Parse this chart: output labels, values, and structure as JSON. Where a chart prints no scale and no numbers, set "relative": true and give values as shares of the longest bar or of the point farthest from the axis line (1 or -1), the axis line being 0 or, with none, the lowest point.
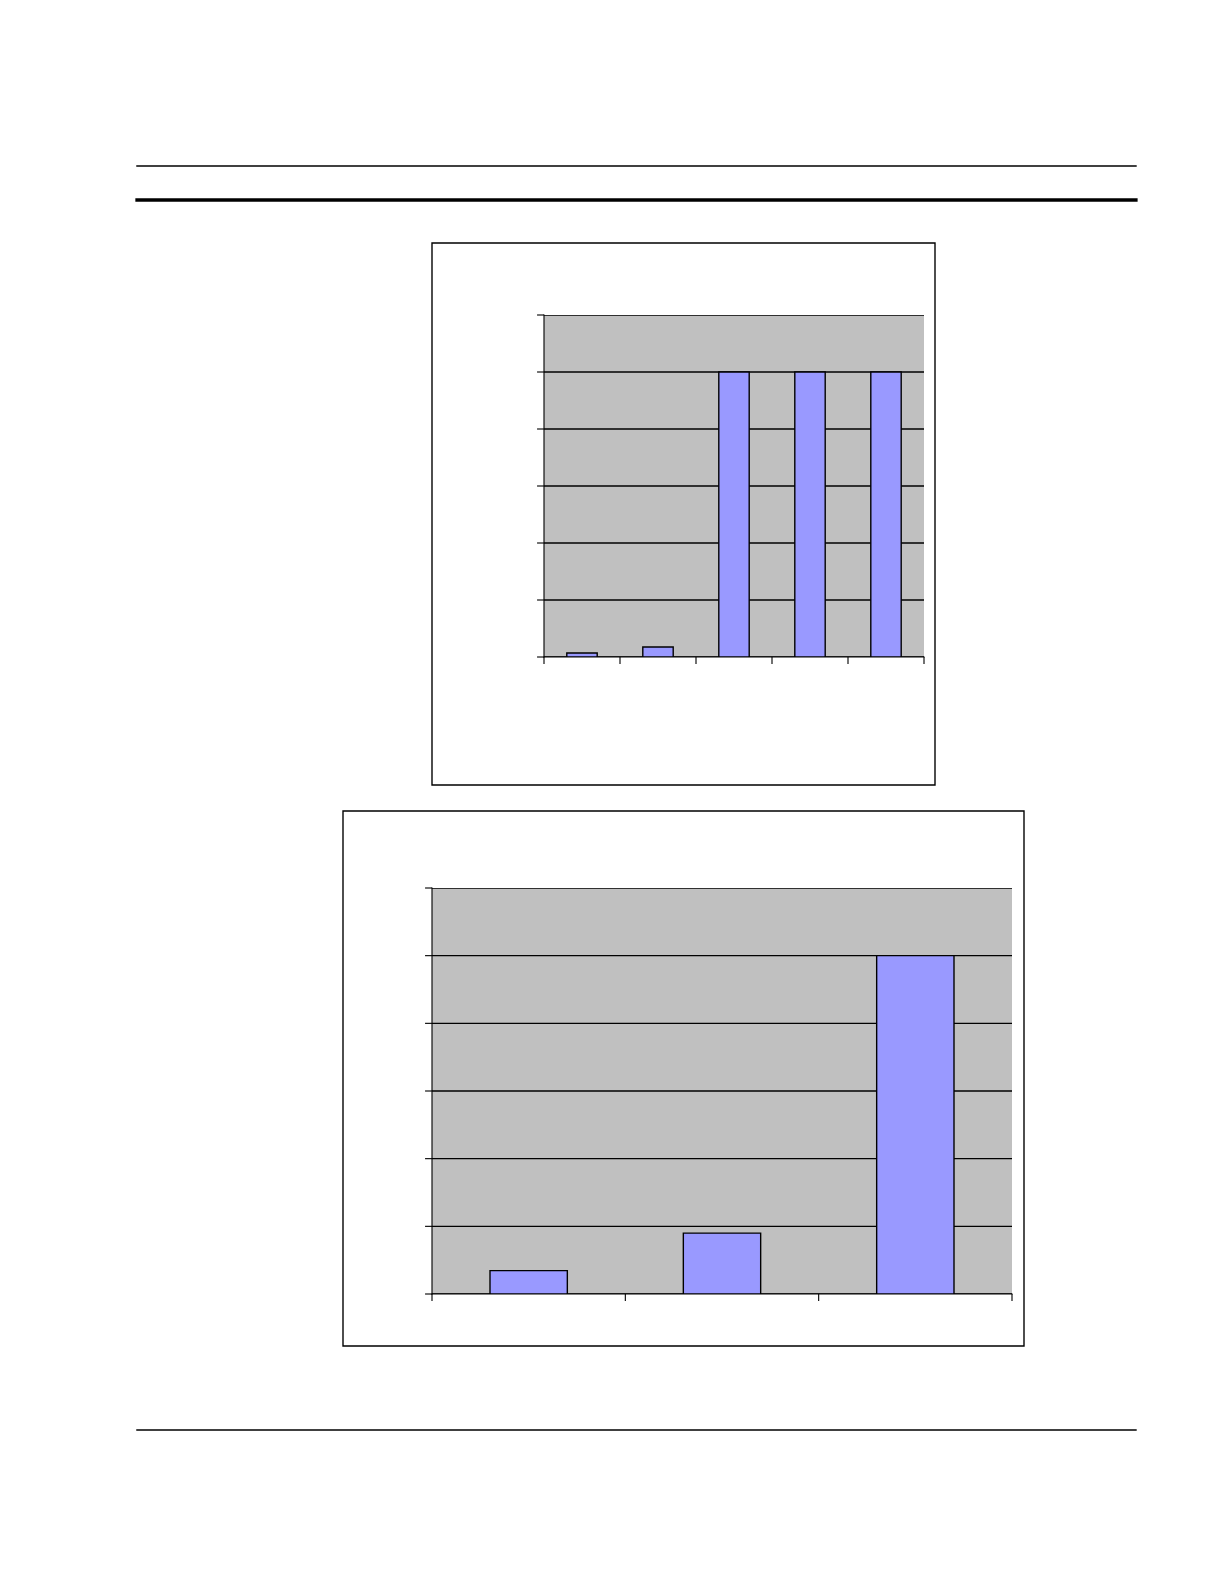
{
  "chart_data": [
    {
      "type": "bar",
      "categories": [
        null,
        null,
        null,
        null,
        null
      ],
      "values": [
        0.014,
        0.035,
        1,
        1,
        1
      ],
      "color": "#9999ff",
      "relative": true,
      "grid": "y",
      "tick_labels": false
    },
    {
      "type": "bar",
      "categories": [
        null,
        null,
        null
      ],
      "values": [
        0.069,
        0.18,
        1
      ],
      "color": "#9999ff",
      "relative": true,
      "grid": "y",
      "tick_labels": false
    }
  ]
}
